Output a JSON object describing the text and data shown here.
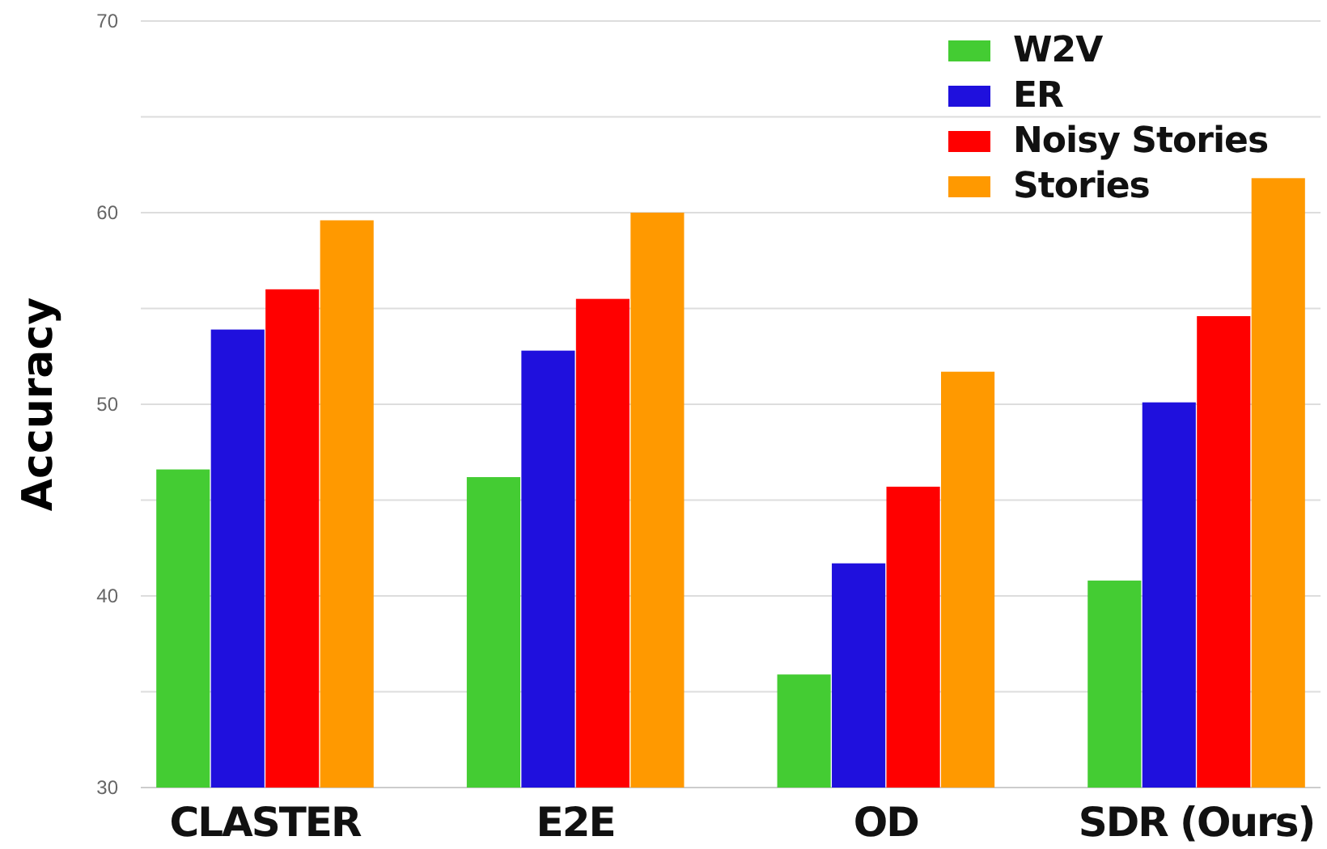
{
  "chart_data": {
    "type": "bar",
    "ylabel": "Accuracy",
    "categories": [
      "CLASTER",
      "E2E",
      "OD",
      "SDR (Ours)"
    ],
    "series": [
      {
        "name": "W2V",
        "color": "#44cc33",
        "values": [
          46.6,
          46.2,
          35.9,
          40.8
        ]
      },
      {
        "name": "ER",
        "color": "#1f10dd",
        "values": [
          53.9,
          52.8,
          41.7,
          50.1
        ]
      },
      {
        "name": "Noisy Stories",
        "color": "#ff0000",
        "values": [
          56.0,
          55.5,
          45.7,
          54.6
        ]
      },
      {
        "name": "Stories",
        "color": "#ff9900",
        "values": [
          59.6,
          60.0,
          51.7,
          61.8
        ]
      }
    ],
    "ylim": [
      30,
      70
    ],
    "yticks": [
      30,
      {
        "value": 35,
        "label": null
      },
      40,
      {
        "value": 45,
        "label": null
      },
      50,
      {
        "value": 55,
        "label": null
      },
      60,
      {
        "value": 65,
        "label": null
      },
      70
    ],
    "grid": "y",
    "legend": "top right"
  }
}
